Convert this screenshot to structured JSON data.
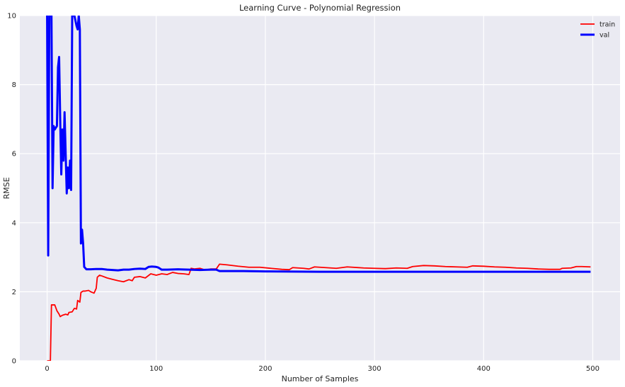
{
  "chart_data": {
    "type": "line",
    "title": "Learning Curve - Polynomial Regression",
    "xlabel": "Number of Samples",
    "ylabel": "RMSE",
    "xlim": [
      -25,
      525
    ],
    "ylim": [
      0,
      10
    ],
    "xticks": [
      0,
      100,
      200,
      300,
      400,
      500
    ],
    "yticks": [
      0,
      2,
      4,
      6,
      8,
      10
    ],
    "grid": true,
    "legend_position": "top-right",
    "series": [
      {
        "name": "train",
        "color": "#ff0000",
        "points": [
          [
            0,
            0
          ],
          [
            3,
            0
          ],
          [
            4,
            1.62
          ],
          [
            7,
            1.62
          ],
          [
            9,
            1.45
          ],
          [
            11,
            1.35
          ],
          [
            12,
            1.28
          ],
          [
            14,
            1.32
          ],
          [
            17,
            1.35
          ],
          [
            19,
            1.33
          ],
          [
            20,
            1.4
          ],
          [
            23,
            1.42
          ],
          [
            25,
            1.52
          ],
          [
            27,
            1.5
          ],
          [
            28,
            1.75
          ],
          [
            30,
            1.7
          ],
          [
            31,
            1.98
          ],
          [
            33,
            2.02
          ],
          [
            35,
            2.02
          ],
          [
            38,
            2.04
          ],
          [
            40,
            2.0
          ],
          [
            43,
            1.96
          ],
          [
            45,
            2.1
          ],
          [
            46,
            2.42
          ],
          [
            48,
            2.48
          ],
          [
            50,
            2.46
          ],
          [
            55,
            2.4
          ],
          [
            60,
            2.36
          ],
          [
            65,
            2.32
          ],
          [
            70,
            2.29
          ],
          [
            75,
            2.35
          ],
          [
            78,
            2.32
          ],
          [
            80,
            2.42
          ],
          [
            85,
            2.44
          ],
          [
            90,
            2.4
          ],
          [
            95,
            2.52
          ],
          [
            100,
            2.48
          ],
          [
            105,
            2.52
          ],
          [
            110,
            2.5
          ],
          [
            115,
            2.56
          ],
          [
            120,
            2.53
          ],
          [
            125,
            2.52
          ],
          [
            130,
            2.5
          ],
          [
            132,
            2.68
          ],
          [
            135,
            2.66
          ],
          [
            140,
            2.68
          ],
          [
            145,
            2.63
          ],
          [
            150,
            2.66
          ],
          [
            155,
            2.66
          ],
          [
            158,
            2.8
          ],
          [
            165,
            2.78
          ],
          [
            175,
            2.74
          ],
          [
            185,
            2.71
          ],
          [
            195,
            2.71
          ],
          [
            205,
            2.68
          ],
          [
            215,
            2.65
          ],
          [
            222,
            2.64
          ],
          [
            225,
            2.7
          ],
          [
            235,
            2.68
          ],
          [
            240,
            2.66
          ],
          [
            245,
            2.72
          ],
          [
            255,
            2.7
          ],
          [
            265,
            2.68
          ],
          [
            275,
            2.72
          ],
          [
            290,
            2.69
          ],
          [
            300,
            2.68
          ],
          [
            310,
            2.67
          ],
          [
            320,
            2.69
          ],
          [
            330,
            2.68
          ],
          [
            335,
            2.73
          ],
          [
            345,
            2.76
          ],
          [
            355,
            2.75
          ],
          [
            365,
            2.73
          ],
          [
            375,
            2.72
          ],
          [
            385,
            2.71
          ],
          [
            390,
            2.75
          ],
          [
            400,
            2.74
          ],
          [
            410,
            2.72
          ],
          [
            420,
            2.71
          ],
          [
            430,
            2.69
          ],
          [
            440,
            2.68
          ],
          [
            450,
            2.66
          ],
          [
            460,
            2.65
          ],
          [
            470,
            2.65
          ],
          [
            472,
            2.68
          ],
          [
            480,
            2.69
          ],
          [
            485,
            2.73
          ],
          [
            490,
            2.73
          ],
          [
            498,
            2.72
          ]
        ]
      },
      {
        "name": "val",
        "color": "#0000ff",
        "points": [
          [
            0,
            10
          ],
          [
            1,
            3.05
          ],
          [
            2,
            10
          ],
          [
            4,
            10
          ],
          [
            5,
            5.0
          ],
          [
            6,
            6.8
          ],
          [
            7,
            6.7
          ],
          [
            8,
            6.75
          ],
          [
            9,
            6.8
          ],
          [
            10,
            8.5
          ],
          [
            11,
            8.8
          ],
          [
            12,
            7.0
          ],
          [
            13,
            5.4
          ],
          [
            14,
            6.7
          ],
          [
            15,
            5.8
          ],
          [
            16,
            7.2
          ],
          [
            17,
            6.0
          ],
          [
            18,
            4.85
          ],
          [
            19,
            5.6
          ],
          [
            20,
            5.0
          ],
          [
            21,
            5.8
          ],
          [
            22,
            4.95
          ],
          [
            23,
            10
          ],
          [
            25,
            10
          ],
          [
            27,
            9.7
          ],
          [
            28,
            9.6
          ],
          [
            29,
            10
          ],
          [
            30,
            9.6
          ],
          [
            31,
            3.4
          ],
          [
            32,
            3.8
          ],
          [
            33,
            3.4
          ],
          [
            34,
            2.72
          ],
          [
            36,
            2.65
          ],
          [
            40,
            2.65
          ],
          [
            45,
            2.66
          ],
          [
            50,
            2.66
          ],
          [
            55,
            2.64
          ],
          [
            60,
            2.63
          ],
          [
            65,
            2.62
          ],
          [
            70,
            2.64
          ],
          [
            75,
            2.64
          ],
          [
            80,
            2.66
          ],
          [
            85,
            2.67
          ],
          [
            90,
            2.66
          ],
          [
            93,
            2.72
          ],
          [
            96,
            2.73
          ],
          [
            100,
            2.72
          ],
          [
            102,
            2.7
          ],
          [
            105,
            2.64
          ],
          [
            110,
            2.64
          ],
          [
            120,
            2.65
          ],
          [
            130,
            2.64
          ],
          [
            140,
            2.63
          ],
          [
            150,
            2.64
          ],
          [
            155,
            2.64
          ],
          [
            158,
            2.6
          ],
          [
            170,
            2.6
          ],
          [
            180,
            2.6
          ],
          [
            200,
            2.59
          ],
          [
            250,
            2.58
          ],
          [
            300,
            2.58
          ],
          [
            350,
            2.58
          ],
          [
            400,
            2.58
          ],
          [
            450,
            2.58
          ],
          [
            498,
            2.58
          ]
        ]
      }
    ]
  }
}
